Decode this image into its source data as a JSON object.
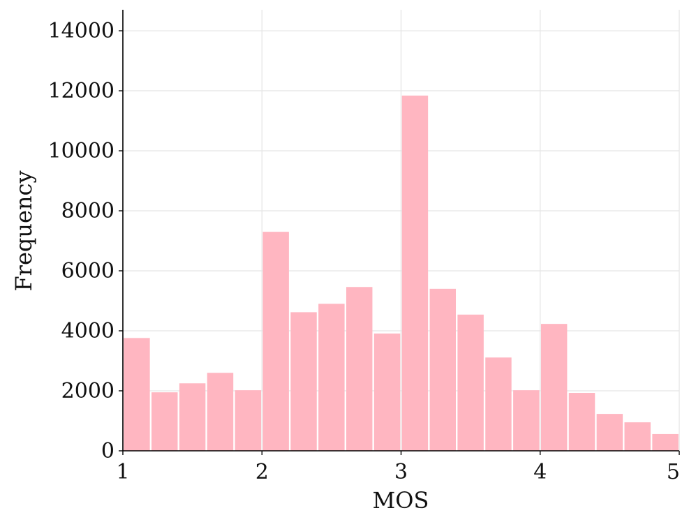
{
  "chart_data": {
    "type": "bar",
    "title": "",
    "xlabel": "MOS",
    "ylabel": "Frequency",
    "xlim": [
      1,
      5
    ],
    "ylim": [
      0,
      14700
    ],
    "grid": true,
    "bar_color": "#ffb6c1",
    "grid_color": "#e5e5e5",
    "x_ticks": [
      "1",
      "2",
      "3",
      "4",
      "5"
    ],
    "y_ticks": [
      "0",
      "2000",
      "4000",
      "6000",
      "8000",
      "10000",
      "12000",
      "14000"
    ],
    "bins": [
      [
        1.0,
        1.2
      ],
      [
        1.2,
        1.4
      ],
      [
        1.4,
        1.6
      ],
      [
        1.6,
        1.8
      ],
      [
        1.8,
        2.0
      ],
      [
        2.0,
        2.2
      ],
      [
        2.2,
        2.4
      ],
      [
        2.4,
        2.6
      ],
      [
        2.6,
        2.8
      ],
      [
        2.8,
        3.0
      ],
      [
        3.0,
        3.2
      ],
      [
        3.2,
        3.4
      ],
      [
        3.4,
        3.6
      ],
      [
        3.6,
        3.8
      ],
      [
        3.8,
        4.0
      ],
      [
        4.0,
        4.2
      ],
      [
        4.2,
        4.4
      ],
      [
        4.4,
        4.6
      ],
      [
        4.6,
        4.8
      ],
      [
        4.8,
        5.0
      ]
    ],
    "values": [
      3760,
      1950,
      2250,
      2600,
      2020,
      7300,
      4620,
      4900,
      5460,
      3910,
      11840,
      5400,
      4540,
      3110,
      2020,
      4230,
      1930,
      1230,
      950,
      560
    ]
  }
}
